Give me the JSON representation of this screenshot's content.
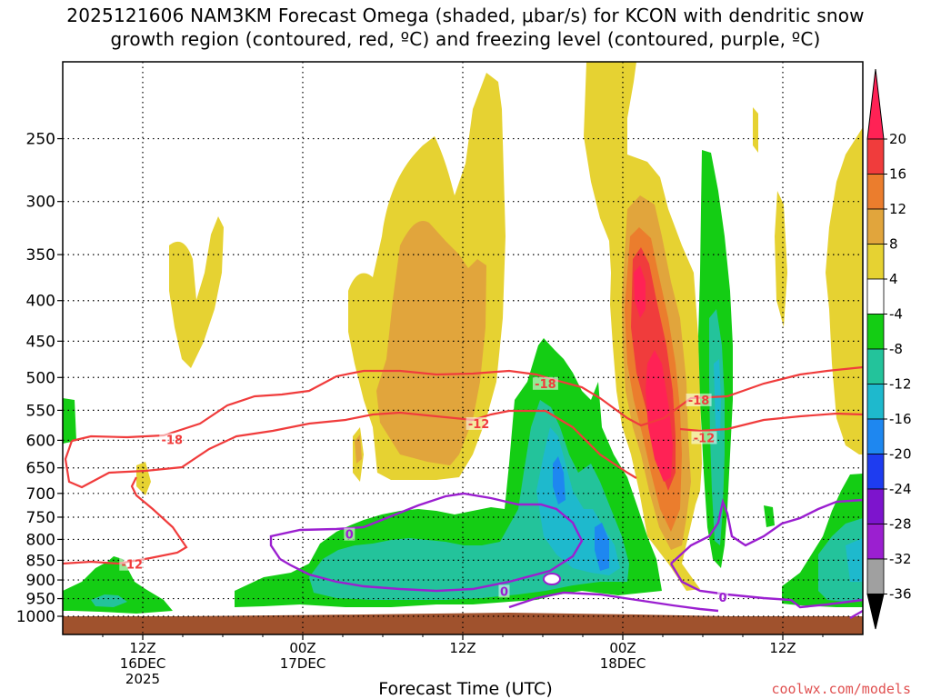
{
  "title_line1": "2025121606 NAM3KM Forecast Omega (shaded, μbar/s) for KCON with dendritic snow",
  "title_line2": "growth region (contoured, red, ºC) and freezing level (contoured, purple, ºC)",
  "x_title": "Forecast Time (UTC)",
  "credit": "coolwx.com/models",
  "chart_data": {
    "type": "heatmap",
    "title": "2025121606 NAM3KM Forecast Omega (shaded, μbar/s) for KCON with dendritic snow growth region (contoured, red, ºC) and freezing level (contoured, purple, ºC)",
    "xlabel": "Forecast Time (UTC)",
    "ylabel": "",
    "y_scale": "log-pressure (hPa, inverted)",
    "ylim": [
      1000,
      200
    ],
    "y_ticks": [
      250,
      300,
      350,
      400,
      450,
      500,
      550,
      600,
      650,
      700,
      750,
      800,
      850,
      900,
      950,
      1000
    ],
    "x_ticks": [
      {
        "label1": "12Z",
        "label2": "16DEC",
        "label3": "2025",
        "hour": 6
      },
      {
        "label1": "00Z",
        "label2": "17DEC",
        "label3": "",
        "hour": 18
      },
      {
        "label1": "12Z",
        "label2": "",
        "label3": "",
        "hour": 30
      },
      {
        "label1": "00Z",
        "label2": "18DEC",
        "label3": "",
        "hour": 42
      },
      {
        "label1": "12Z",
        "label2": "",
        "label3": "",
        "hour": 54
      }
    ],
    "xlim_hours": [
      0,
      60
    ],
    "grid": true,
    "colorbar": {
      "levels": [
        20,
        16,
        12,
        8,
        4,
        -4,
        -8,
        -12,
        -16,
        -20,
        -24,
        -28,
        -32,
        -36
      ],
      "colors": [
        "#ff2255",
        "#f03c3c",
        "#eb7d2d",
        "#e1a53c",
        "#e6d232",
        "#ffffff",
        "#14cd14",
        "#23c39b",
        "#1eb9cd",
        "#1e87f0",
        "#1e3cf0",
        "#7d14cd",
        "#9b1fd0",
        "#a0a0a0",
        "#000000"
      ],
      "units": "μbar/s"
    },
    "contours": [
      {
        "name": "-18",
        "color": "#f03c3c",
        "variable": "temperature"
      },
      {
        "name": "-12",
        "color": "#f03c3c",
        "variable": "temperature"
      },
      {
        "name": "0",
        "color": "#9b1fd0",
        "variable": "temperature"
      }
    ],
    "contour_labels": [
      {
        "text": "-18",
        "hour": 8.2,
        "p": 600,
        "color": "#f03c3c"
      },
      {
        "text": "-12",
        "hour": 5.2,
        "p": 862,
        "color": "#f03c3c"
      },
      {
        "text": "-12",
        "hour": 31.2,
        "p": 573,
        "color": "#f03c3c"
      },
      {
        "text": "-18",
        "hour": 36.2,
        "p": 510,
        "color": "#f03c3c"
      },
      {
        "text": "-18",
        "hour": 47.7,
        "p": 535,
        "color": "#f03c3c"
      },
      {
        "text": "-12",
        "hour": 48.1,
        "p": 597,
        "color": "#f03c3c"
      },
      {
        "text": "0",
        "hour": 21.5,
        "p": 790,
        "color": "#9b1fd0"
      },
      {
        "text": "0",
        "hour": 33.1,
        "p": 932,
        "color": "#9b1fd0"
      },
      {
        "text": "0",
        "hour": 49.5,
        "p": 948,
        "color": "#9b1fd0"
      }
    ]
  }
}
